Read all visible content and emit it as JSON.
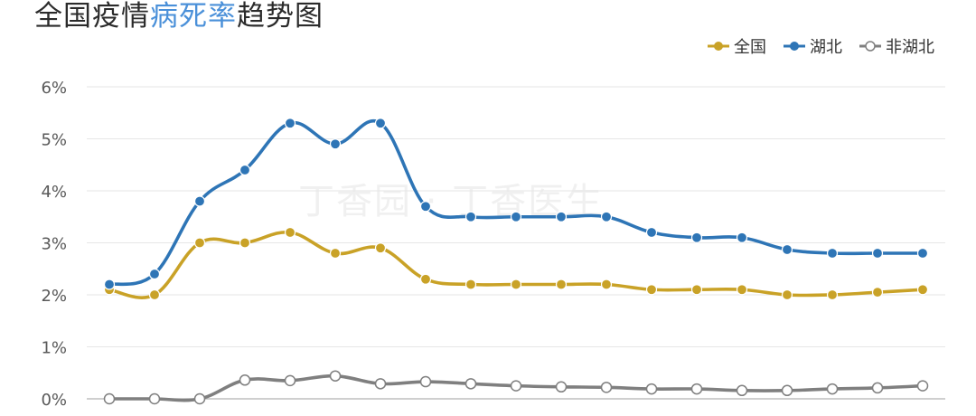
{
  "title": {
    "prefix": "全国疫情",
    "highlight": "病死率",
    "suffix": "趋势图"
  },
  "watermark": "丁香园 · 丁香医生",
  "colors": {
    "national": "#c9a227",
    "hubei": "#2e75b6",
    "non_hubei": "#7f7f7f",
    "grid": "#e6e6e6",
    "axis": "#bfbfbf",
    "tick_text": "#595959"
  },
  "chart_data": {
    "type": "line",
    "title": "全国疫情病死率趋势图",
    "xlabel": "",
    "ylabel": "",
    "ylim": [
      0,
      6
    ],
    "yticks": [
      "0%",
      "1%",
      "2%",
      "3%",
      "4%",
      "5%",
      "6%"
    ],
    "grid": true,
    "legend_position": "top-right",
    "x": [
      1,
      2,
      3,
      4,
      5,
      6,
      7,
      8,
      9,
      10,
      11,
      12,
      13,
      14,
      15,
      16,
      17,
      18,
      19
    ],
    "series": [
      {
        "name": "全国",
        "marker": "filled",
        "values": [
          2.1,
          2.0,
          3.0,
          3.0,
          3.2,
          2.8,
          2.9,
          2.3,
          2.2,
          2.2,
          2.2,
          2.2,
          2.1,
          2.1,
          2.1,
          2.0,
          2.0,
          2.05,
          2.1
        ]
      },
      {
        "name": "湖北",
        "marker": "filled",
        "values": [
          2.2,
          2.4,
          3.8,
          4.4,
          5.3,
          4.9,
          5.3,
          3.7,
          3.5,
          3.5,
          3.5,
          3.5,
          3.2,
          3.1,
          3.1,
          2.87,
          2.8,
          2.8,
          2.8
        ]
      },
      {
        "name": "非湖北",
        "marker": "hollow",
        "values": [
          0.0,
          0.0,
          0.0,
          0.36,
          0.35,
          0.44,
          0.29,
          0.33,
          0.29,
          0.25,
          0.23,
          0.22,
          0.19,
          0.19,
          0.16,
          0.16,
          0.19,
          0.21,
          0.25
        ]
      }
    ]
  }
}
